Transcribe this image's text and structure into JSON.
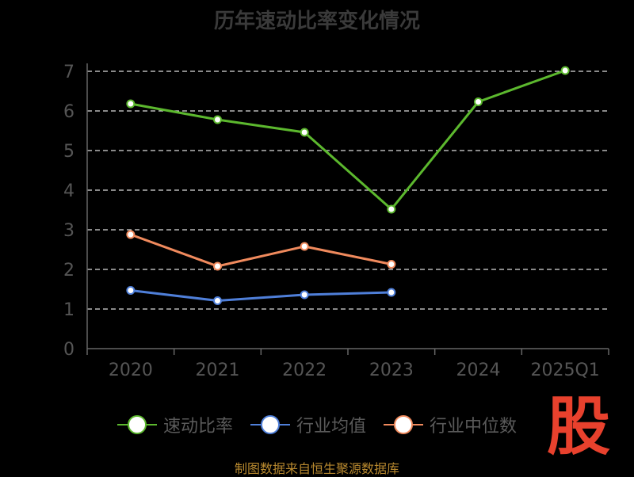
{
  "chart_data": {
    "type": "line",
    "title": "历年速动比率变化情况",
    "categories": [
      "2020",
      "2021",
      "2022",
      "2023",
      "2024",
      "2025Q1"
    ],
    "series": [
      {
        "name": "速动比率",
        "color": "#5cb82e",
        "values": [
          6.18,
          5.78,
          5.46,
          3.52,
          6.23,
          7.02
        ]
      },
      {
        "name": "行业均值",
        "color": "#4f7fd9",
        "values": [
          1.47,
          1.21,
          1.36,
          1.42,
          null,
          null
        ]
      },
      {
        "name": "行业中位数",
        "color": "#f08a5d",
        "values": [
          2.88,
          2.08,
          2.58,
          2.13,
          null,
          null
        ]
      }
    ],
    "ylim": [
      0,
      7
    ],
    "yticks": [
      0,
      1,
      2,
      3,
      4,
      5,
      6,
      7
    ],
    "grid": true,
    "legend": "bottom"
  },
  "watermark": "股",
  "source_note": "制图数据来自恒生聚源数据库"
}
